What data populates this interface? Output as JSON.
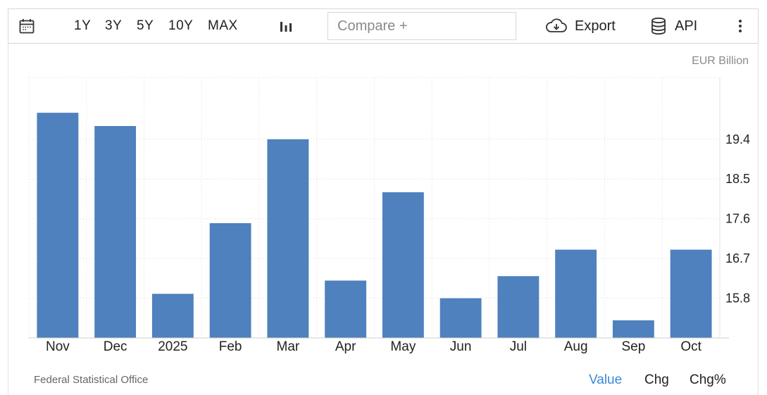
{
  "toolbar": {
    "ranges": [
      "1Y",
      "3Y",
      "5Y",
      "10Y",
      "MAX"
    ],
    "compare_placeholder": "Compare +",
    "export_label": "Export",
    "api_label": "API",
    "icons": [
      "calendar-icon",
      "chart-type-icon",
      "cloud-download-icon",
      "database-icon",
      "more-vertical-icon"
    ]
  },
  "unit_label": "EUR Billion",
  "source": "Federal Statistical Office",
  "view_tabs": {
    "value": "Value",
    "chg": "Chg",
    "chg_pct": "Chg%",
    "active": "Value"
  },
  "colors": {
    "bar": "#4e81bd",
    "accent": "#3a8bd6",
    "grid": "#ececec"
  },
  "chart_data": {
    "type": "bar",
    "categories": [
      "Nov",
      "Dec",
      "2025",
      "Feb",
      "Mar",
      "Apr",
      "May",
      "Jun",
      "Jul",
      "Aug",
      "Sep",
      "Oct"
    ],
    "values": [
      20.0,
      19.7,
      15.9,
      17.5,
      19.4,
      16.2,
      18.2,
      15.8,
      16.3,
      16.9,
      15.3,
      16.9
    ],
    "yticks": [
      "19.4",
      "18.5",
      "17.6",
      "16.7",
      "15.8"
    ],
    "ylim": [
      14.9,
      20.8
    ],
    "title": "",
    "xlabel": "",
    "ylabel": "EUR Billion",
    "grid": true
  }
}
